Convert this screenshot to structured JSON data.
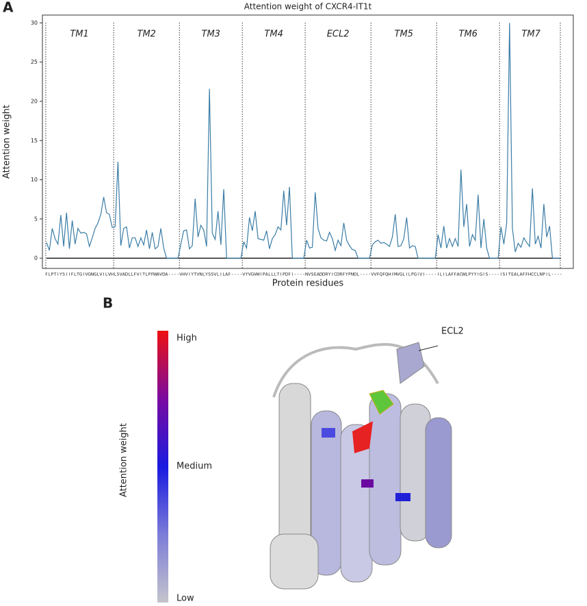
{
  "panel_a": "A",
  "panel_b": "B",
  "chart_data": {
    "type": "line",
    "title": "Attention weight of CXCR4-IT1t",
    "x_label": "Protein residues",
    "y_label": "Attention weight",
    "color": "#3a7ca5",
    "ylim": [
      -1.3,
      31
    ],
    "yticks": [
      0,
      5,
      10,
      15,
      20,
      25,
      30
    ],
    "regions": [
      {
        "label": "TM1",
        "residues": [
          "F",
          "L",
          "P",
          "T",
          "I",
          "Y",
          "S",
          "I",
          "I",
          "F",
          "L",
          "T",
          "G",
          "I",
          "V",
          "G",
          "N",
          "G",
          "L",
          "V",
          "I",
          "L",
          "V",
          "H"
        ],
        "values": [
          2,
          1,
          3.8,
          2.5,
          1.8,
          5.5,
          1.5,
          5.8,
          1.2,
          4.8,
          1.8,
          3.8,
          3.2,
          3.3,
          3.1,
          1.5,
          2.6,
          3.8,
          4.5,
          5.6,
          7.8,
          5.8,
          5.6,
          3.9
        ]
      },
      {
        "label": "TM2",
        "residues": [
          "L",
          "S",
          "V",
          "A",
          "D",
          "L",
          "L",
          "F",
          "V",
          "I",
          "T",
          "L",
          "P",
          "F",
          "W",
          "A",
          "V",
          "D",
          "A",
          "-",
          "-",
          "-",
          "-"
        ],
        "values": [
          4.0,
          12.3,
          1.6,
          3.8,
          4.0,
          1.3,
          2.6,
          2.6,
          1.5,
          2.6,
          1.7,
          3.6,
          1.2,
          3.3,
          1.2,
          1.5,
          3.8,
          1.3,
          0,
          0,
          0,
          0,
          0
        ]
      },
      {
        "label": "TM3",
        "residues": [
          "V",
          "H",
          "V",
          "I",
          "Y",
          "T",
          "V",
          "N",
          "L",
          "Y",
          "S",
          "S",
          "V",
          "L",
          "I",
          "L",
          "A",
          "F",
          "-",
          "-",
          "-",
          "-"
        ],
        "values": [
          1.8,
          3.5,
          3.6,
          1.2,
          1.6,
          7.6,
          2.7,
          4.2,
          3.6,
          1.5,
          21.6,
          3.2,
          2.4,
          6.0,
          1.7,
          8.8,
          0,
          0,
          0,
          0,
          0,
          0
        ]
      },
      {
        "label": "TM4",
        "residues": [
          "V",
          "Y",
          "V",
          "G",
          "V",
          "W",
          "I",
          "P",
          "A",
          "L",
          "L",
          "L",
          "T",
          "I",
          "P",
          "D",
          "F",
          "I",
          "-",
          "-",
          "-",
          "-"
        ],
        "values": [
          2.1,
          1.3,
          5.2,
          3.5,
          6.0,
          2.5,
          2.4,
          2.3,
          3.5,
          1.2,
          2.5,
          3.0,
          4.0,
          3.6,
          8.6,
          4.2,
          9.1,
          0,
          0,
          0,
          0,
          0
        ]
      },
      {
        "label": "ECL2",
        "residues": [
          "N",
          "V",
          "S",
          "E",
          "A",
          "D",
          "D",
          "R",
          "Y",
          "I",
          "C",
          "D",
          "R",
          "F",
          "Y",
          "P",
          "N",
          "D",
          "L",
          "-",
          "-",
          "-",
          "-"
        ],
        "values": [
          2.3,
          1.3,
          1.4,
          8.4,
          3.8,
          2.6,
          2.3,
          2.2,
          3.3,
          2.5,
          1.0,
          2.3,
          1.6,
          4.5,
          2.3,
          1.6,
          1.1,
          1.0,
          0,
          0,
          0,
          0,
          0
        ]
      },
      {
        "label": "TM5",
        "residues": [
          "V",
          "V",
          "F",
          "Q",
          "F",
          "Q",
          "H",
          "I",
          "M",
          "V",
          "G",
          "L",
          "I",
          "L",
          "P",
          "G",
          "I",
          "V",
          "I",
          "-",
          "-",
          "-",
          "-"
        ],
        "values": [
          1.7,
          2.1,
          2.3,
          1.9,
          2.0,
          1.8,
          1.5,
          2.7,
          5.6,
          1.5,
          1.6,
          2.5,
          5.2,
          1.3,
          1.6,
          1.5,
          0,
          0,
          0,
          0,
          0,
          0,
          0
        ]
      },
      {
        "label": "TM6",
        "residues": [
          "I",
          "L",
          "I",
          "L",
          "A",
          "F",
          "F",
          "A",
          "C",
          "W",
          "L",
          "P",
          "Y",
          "Y",
          "I",
          "G",
          "I",
          "S",
          "-",
          "-",
          "-",
          "-"
        ],
        "values": [
          3.0,
          1.3,
          4.1,
          1.3,
          2.5,
          1.5,
          2.5,
          1.5,
          11.3,
          4.0,
          6.9,
          1.5,
          3.0,
          2.3,
          8.1,
          1.3,
          5.0,
          1.3,
          0,
          0,
          0,
          0
        ]
      },
      {
        "label": "TM7",
        "residues": [
          "I",
          "S",
          "I",
          "T",
          "E",
          "A",
          "L",
          "A",
          "F",
          "F",
          "H",
          "C",
          "C",
          "L",
          "N",
          "P",
          "I",
          "L",
          "-",
          "-",
          "-",
          "-"
        ],
        "values": [
          4.0,
          1.8,
          4.5,
          30,
          3.8,
          0.8,
          1.9,
          1.4,
          2.6,
          2.0,
          1.5,
          8.9,
          1.8,
          2.8,
          1.3,
          6.9,
          2.7,
          4.1,
          0,
          0,
          0,
          0
        ]
      }
    ]
  },
  "structure": {
    "colorbar_label": "Attention weight",
    "levels": [
      "High",
      "Medium",
      "Low"
    ],
    "colorbar_colors": [
      "#ee1111",
      "#7a0aa0",
      "#1a1ae0",
      "#7c7cd8",
      "#c4c4cc"
    ],
    "annotation": "ECL2"
  }
}
